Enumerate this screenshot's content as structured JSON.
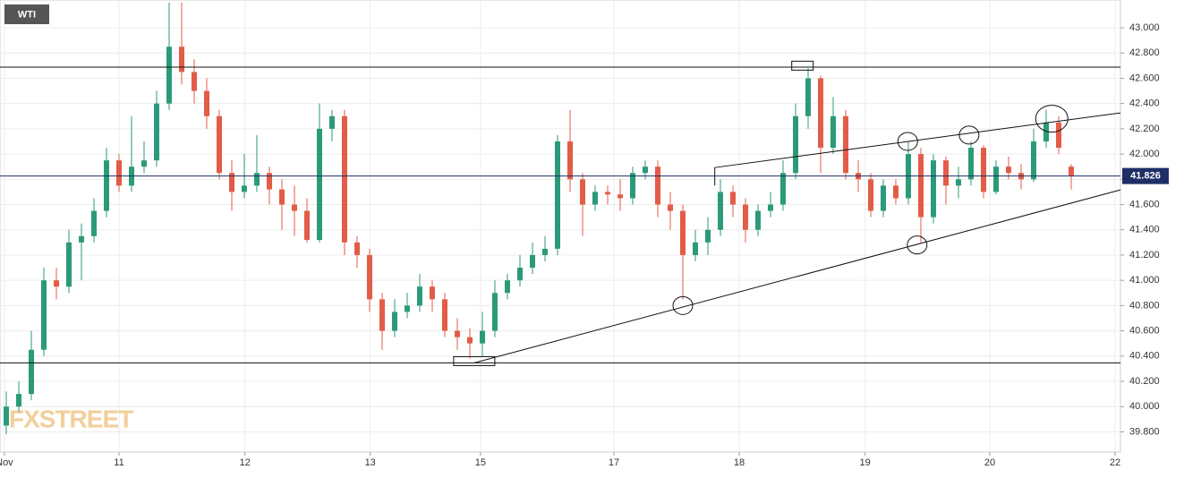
{
  "chart_data": {
    "type": "candlestick",
    "symbol": "WTI",
    "watermark": "FXSTREET",
    "x": [
      1,
      3,
      5,
      7,
      9,
      11,
      13,
      15,
      17,
      19,
      21,
      23,
      25,
      27,
      29,
      31,
      33,
      35,
      37,
      39,
      41,
      43,
      45,
      47,
      49,
      51,
      53,
      55,
      57,
      59,
      61,
      63,
      65,
      67,
      69,
      71,
      73,
      75,
      77,
      79,
      81,
      83,
      85,
      87,
      89,
      91,
      93,
      95,
      97,
      99,
      101,
      103,
      105,
      107,
      109,
      111,
      113,
      115,
      117,
      119,
      121,
      123,
      125,
      127,
      129,
      131,
      133,
      135,
      137,
      139,
      141,
      143,
      145,
      147,
      149,
      151,
      153,
      155,
      157,
      159,
      161,
      163,
      165,
      167,
      169,
      171
    ],
    "open": [
      39.85,
      40.0,
      40.1,
      40.45,
      41.0,
      40.95,
      41.3,
      41.35,
      41.55,
      41.95,
      41.75,
      41.9,
      41.95,
      42.4,
      42.85,
      42.65,
      42.5,
      42.3,
      41.85,
      41.7,
      41.75,
      41.85,
      41.72,
      41.6,
      41.55,
      41.32,
      42.2,
      42.3,
      41.3,
      41.2,
      40.85,
      40.6,
      40.75,
      40.8,
      40.95,
      40.85,
      40.6,
      40.55,
      40.5,
      40.6,
      40.9,
      41.0,
      41.1,
      41.2,
      41.25,
      42.1,
      41.8,
      41.6,
      41.7,
      41.68,
      41.65,
      41.85,
      41.9,
      41.6,
      41.55,
      41.2,
      41.3,
      41.4,
      41.7,
      41.6,
      41.4,
      41.55,
      41.6,
      41.85,
      42.3,
      42.6,
      42.05,
      42.3,
      41.85,
      41.8,
      41.55,
      41.75,
      41.65,
      42.0,
      41.5,
      41.95,
      41.75,
      41.8,
      42.05,
      41.7,
      41.9,
      41.85,
      41.8,
      42.1,
      42.25,
      41.9
    ],
    "high": [
      40.12,
      40.2,
      40.6,
      41.1,
      41.1,
      41.4,
      41.45,
      41.65,
      42.05,
      42.0,
      42.3,
      42.1,
      42.5,
      43.2,
      43.2,
      42.75,
      42.6,
      42.35,
      41.95,
      42.0,
      42.15,
      41.9,
      41.8,
      41.75,
      41.65,
      42.4,
      42.35,
      42.35,
      41.35,
      41.25,
      40.9,
      40.85,
      40.9,
      41.05,
      41.0,
      40.9,
      40.7,
      40.62,
      40.75,
      41.0,
      41.05,
      41.2,
      41.3,
      41.35,
      42.15,
      42.35,
      41.85,
      41.75,
      41.75,
      41.8,
      41.9,
      41.95,
      41.95,
      41.7,
      41.6,
      41.4,
      41.5,
      41.8,
      41.75,
      41.65,
      41.6,
      41.7,
      41.95,
      42.4,
      42.68,
      42.62,
      42.45,
      42.35,
      41.95,
      41.85,
      41.8,
      41.8,
      42.1,
      42.05,
      42.0,
      41.98,
      41.9,
      42.1,
      42.07,
      41.95,
      41.98,
      41.92,
      42.2,
      42.35,
      42.3,
      41.92
    ],
    "low": [
      39.78,
      39.95,
      40.05,
      40.4,
      40.85,
      40.9,
      41.0,
      41.3,
      41.5,
      41.7,
      41.7,
      41.85,
      41.9,
      42.35,
      42.55,
      42.4,
      42.2,
      41.8,
      41.55,
      41.65,
      41.7,
      41.6,
      41.4,
      41.35,
      41.3,
      41.3,
      42.1,
      41.2,
      41.1,
      40.75,
      40.45,
      40.55,
      40.7,
      40.75,
      40.75,
      40.55,
      40.45,
      40.38,
      40.4,
      40.55,
      40.85,
      40.95,
      41.05,
      41.15,
      41.2,
      41.7,
      41.35,
      41.55,
      41.6,
      41.55,
      41.6,
      41.8,
      41.5,
      41.4,
      40.85,
      41.15,
      41.2,
      41.35,
      41.5,
      41.3,
      41.35,
      41.5,
      41.55,
      41.8,
      42.2,
      41.85,
      42.0,
      41.8,
      41.7,
      41.5,
      41.5,
      41.6,
      41.6,
      41.3,
      41.45,
      41.6,
      41.65,
      41.75,
      41.65,
      41.68,
      41.8,
      41.72,
      41.78,
      42.05,
      42.0,
      41.72
    ],
    "close": [
      40.0,
      40.1,
      40.45,
      41.0,
      40.95,
      41.3,
      41.35,
      41.55,
      41.95,
      41.75,
      41.9,
      41.95,
      42.4,
      42.85,
      42.65,
      42.5,
      42.3,
      41.85,
      41.7,
      41.75,
      41.85,
      41.72,
      41.6,
      41.55,
      41.32,
      42.2,
      42.3,
      41.3,
      41.2,
      40.85,
      40.6,
      40.75,
      40.8,
      40.95,
      40.85,
      40.6,
      40.55,
      40.5,
      40.6,
      40.9,
      41.0,
      41.1,
      41.2,
      41.25,
      42.1,
      41.8,
      41.6,
      41.7,
      41.68,
      41.65,
      41.85,
      41.9,
      41.6,
      41.55,
      41.2,
      41.3,
      41.4,
      41.7,
      41.6,
      41.4,
      41.55,
      41.6,
      41.85,
      42.3,
      42.6,
      42.05,
      42.3,
      41.85,
      41.8,
      41.55,
      41.75,
      41.65,
      42.0,
      41.5,
      41.95,
      41.75,
      41.8,
      42.05,
      41.7,
      41.9,
      41.85,
      41.8,
      42.1,
      42.25,
      42.05,
      41.83
    ],
    "up_color": "#2b9a7a",
    "down_color": "#e25c47",
    "last_price": 41.826,
    "last_price_color": "#1e2f66",
    "xlim": [
      0,
      178.86
    ],
    "ylim": [
      39.64,
      43.22
    ],
    "xticks": [
      {
        "value": 0.7,
        "label": "Nov"
      },
      {
        "value": 19,
        "label": "11"
      },
      {
        "value": 39.1,
        "label": "12"
      },
      {
        "value": 59.1,
        "label": "13"
      },
      {
        "value": 76.7,
        "label": "15"
      },
      {
        "value": 98,
        "label": "17"
      },
      {
        "value": 118,
        "label": "18"
      },
      {
        "value": 138.1,
        "label": "19"
      },
      {
        "value": 158,
        "label": "20"
      },
      {
        "value": 178,
        "label": "22"
      }
    ],
    "yticks": [
      {
        "value": 39.8,
        "label": "39.800"
      },
      {
        "value": 40.0,
        "label": "40.000"
      },
      {
        "value": 40.2,
        "label": "40.200"
      },
      {
        "value": 40.4,
        "label": "40.400"
      },
      {
        "value": 40.6,
        "label": "40.600"
      },
      {
        "value": 40.8,
        "label": "40.800"
      },
      {
        "value": 41.0,
        "label": "41.000"
      },
      {
        "value": 41.2,
        "label": "41.200"
      },
      {
        "value": 41.4,
        "label": "41.400"
      },
      {
        "value": 41.6,
        "label": "41.600"
      },
      {
        "value": 41.8,
        "label": "41.800"
      },
      {
        "value": 42.0,
        "label": "42.000"
      },
      {
        "value": 42.2,
        "label": "42.200"
      },
      {
        "value": 42.4,
        "label": "42.400"
      },
      {
        "value": 42.6,
        "label": "42.600"
      },
      {
        "value": 42.8,
        "label": "42.800"
      },
      {
        "value": 43.0,
        "label": "43.000"
      }
    ],
    "grid": true,
    "hlines": [
      42.688,
      40.346
    ],
    "trendlines": [
      [
        114.1,
        41.893,
        178.86,
        42.326
      ],
      [
        75.7,
        40.346,
        178.86,
        41.716
      ]
    ],
    "circles": [
      [
        109,
        40.8
      ],
      [
        144.9,
        42.1
      ],
      [
        146.4,
        41.28
      ],
      [
        154.7,
        42.15
      ],
      [
        167.9,
        42.28
      ]
    ],
    "boxes": [
      [
        128.1,
        42.7
      ],
      [
        75.7,
        40.36
      ]
    ]
  }
}
